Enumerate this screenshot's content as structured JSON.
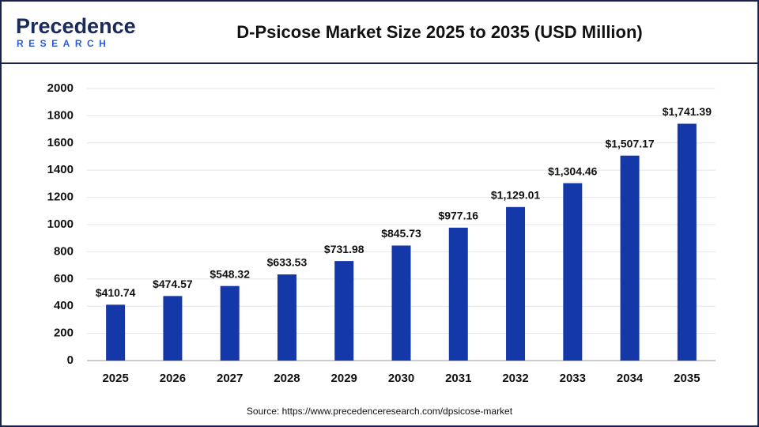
{
  "logo": {
    "name": "Precedence",
    "tagline": "RESEARCH"
  },
  "chart_data": {
    "type": "bar",
    "title": "D-Psicose Market Size 2025 to 2035 (USD Million)",
    "categories": [
      "2025",
      "2026",
      "2027",
      "2028",
      "2029",
      "2030",
      "2031",
      "2032",
      "2033",
      "2034",
      "2035"
    ],
    "values": [
      410.74,
      474.57,
      548.32,
      633.53,
      731.98,
      845.73,
      977.16,
      1129.01,
      1304.46,
      1507.17,
      1741.39
    ],
    "value_labels": [
      "$410.74",
      "$474.57",
      "$548.32",
      "$633.53",
      "$731.98",
      "$845.73",
      "$977.16",
      "$1,129.01",
      "$1,304.46",
      "$1,507.17",
      "$1,741.39"
    ],
    "color": "#1538a8",
    "ylim": [
      0,
      2000
    ],
    "yticks": [
      0,
      200,
      400,
      600,
      800,
      1000,
      1200,
      1400,
      1600,
      1800,
      2000
    ],
    "grid": true,
    "source": "Source: https://www.precedenceresearch.com/dpsicose-market"
  }
}
